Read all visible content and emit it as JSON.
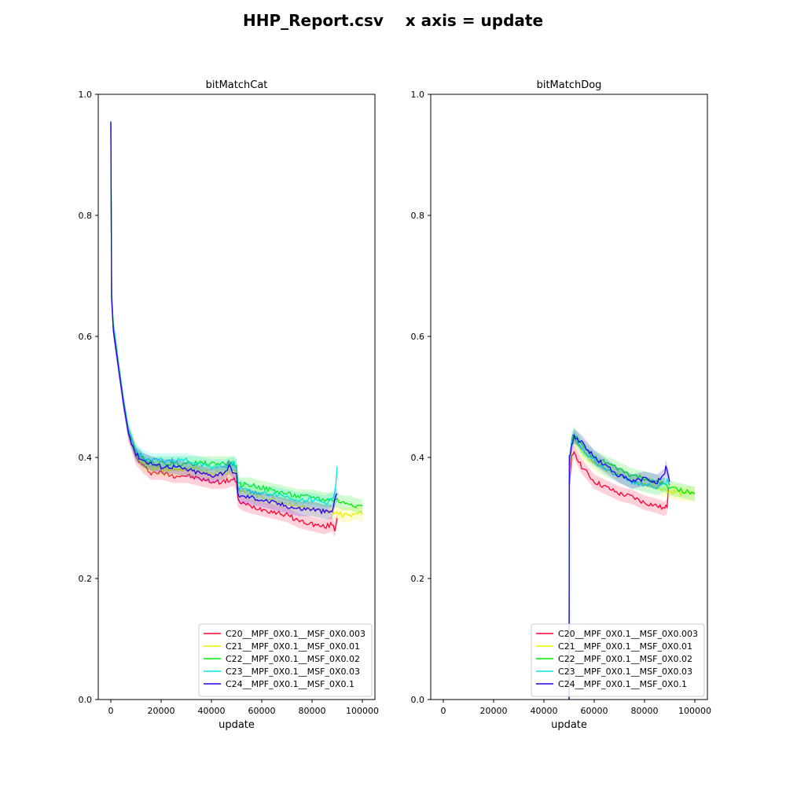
{
  "figure": {
    "title": "HHP_Report.csv    x axis = update"
  },
  "colors": {
    "C20": "#ff0033",
    "C21": "#f0f000",
    "C22": "#00ee00",
    "C23": "#00e5e5",
    "C24": "#2200ee"
  },
  "chart_data": [
    {
      "type": "line",
      "title": "bitMatchCat",
      "xlabel": "update",
      "ylabel": "",
      "xlim": [
        -5000,
        105000
      ],
      "ylim": [
        0.0,
        1.0
      ],
      "xticks": [
        0,
        20000,
        40000,
        60000,
        80000,
        100000
      ],
      "xtick_labels": [
        "0",
        "20000",
        "40000",
        "60000",
        "80000",
        "100000"
      ],
      "yticks": [
        0.0,
        0.2,
        0.4,
        0.6,
        0.8,
        1.0
      ],
      "ytick_labels": [
        "0.0",
        "0.2",
        "0.4",
        "0.6",
        "0.8",
        "1.0"
      ],
      "legend_position": "lower-right",
      "shaded_band": true,
      "series": [
        {
          "name": "C20__MPF_0X0.1__MSF_0X0.003",
          "color_key": "C20",
          "x": [
            0,
            300,
            1000,
            2000,
            3000,
            5000,
            7000,
            10000,
            13000,
            16000,
            20000,
            25000,
            30000,
            35000,
            40000,
            45000,
            49000,
            50000,
            50500,
            52000,
            55000,
            60000,
            65000,
            70000,
            75000,
            80000,
            85000,
            88000,
            89000,
            89500,
            90000
          ],
          "y": [
            0.95,
            0.66,
            0.61,
            0.58,
            0.55,
            0.49,
            0.44,
            0.4,
            0.385,
            0.375,
            0.375,
            0.37,
            0.37,
            0.365,
            0.36,
            0.36,
            0.365,
            0.355,
            0.33,
            0.325,
            0.32,
            0.315,
            0.31,
            0.305,
            0.295,
            0.29,
            0.285,
            0.29,
            0.28,
            0.29,
            0.3
          ]
        },
        {
          "name": "C21__MPF_0X0.1__MSF_0X0.01",
          "color_key": "C21",
          "x": [
            0,
            300,
            1000,
            2000,
            3000,
            5000,
            7000,
            10000,
            13000,
            16000,
            20000,
            25000,
            30000,
            35000,
            40000,
            45000,
            49000,
            50000,
            50500,
            52000,
            55000,
            60000,
            65000,
            70000,
            75000,
            80000,
            85000,
            90000,
            92000,
            95000,
            98000,
            100000
          ],
          "y": [
            0.955,
            0.665,
            0.615,
            0.585,
            0.555,
            0.495,
            0.445,
            0.405,
            0.39,
            0.385,
            0.38,
            0.38,
            0.38,
            0.38,
            0.375,
            0.375,
            0.38,
            0.375,
            0.345,
            0.345,
            0.34,
            0.335,
            0.33,
            0.325,
            0.32,
            0.315,
            0.31,
            0.31,
            0.305,
            0.305,
            0.31,
            0.305
          ]
        },
        {
          "name": "C22__MPF_0X0.1__MSF_0X0.02",
          "color_key": "C22",
          "x": [
            0,
            300,
            1000,
            2000,
            3000,
            5000,
            7000,
            10000,
            13000,
            16000,
            20000,
            25000,
            30000,
            35000,
            40000,
            45000,
            49000,
            50000,
            50500,
            52000,
            55000,
            60000,
            65000,
            70000,
            75000,
            80000,
            85000,
            90000,
            92000,
            95000,
            98000,
            100000
          ],
          "y": [
            0.955,
            0.67,
            0.62,
            0.59,
            0.555,
            0.495,
            0.445,
            0.41,
            0.395,
            0.39,
            0.39,
            0.39,
            0.39,
            0.39,
            0.39,
            0.39,
            0.39,
            0.385,
            0.355,
            0.355,
            0.355,
            0.35,
            0.345,
            0.34,
            0.335,
            0.335,
            0.33,
            0.33,
            0.325,
            0.325,
            0.32,
            0.32
          ]
        },
        {
          "name": "C23__MPF_0X0.1__MSF_0X0.03",
          "color_key": "C23",
          "x": [
            0,
            300,
            1000,
            2000,
            3000,
            5000,
            7000,
            10000,
            13000,
            16000,
            20000,
            25000,
            30000,
            35000,
            40000,
            45000,
            49000,
            50000,
            50500,
            52000,
            55000,
            60000,
            65000,
            70000,
            75000,
            80000,
            85000,
            88000,
            89000,
            89500,
            90000
          ],
          "y": [
            0.955,
            0.665,
            0.615,
            0.585,
            0.555,
            0.495,
            0.445,
            0.41,
            0.4,
            0.395,
            0.395,
            0.395,
            0.395,
            0.39,
            0.385,
            0.385,
            0.39,
            0.385,
            0.35,
            0.35,
            0.345,
            0.34,
            0.34,
            0.335,
            0.33,
            0.33,
            0.325,
            0.33,
            0.34,
            0.36,
            0.385
          ]
        },
        {
          "name": "C24__MPF_0X0.1__MSF_0X0.1",
          "color_key": "C24",
          "x": [
            0,
            300,
            1000,
            2000,
            3000,
            5000,
            7000,
            10000,
            13000,
            16000,
            20000,
            25000,
            30000,
            35000,
            40000,
            45000,
            47000,
            49000,
            50000,
            50500,
            52000,
            55000,
            60000,
            65000,
            70000,
            75000,
            80000,
            85000,
            88000,
            89000,
            90000
          ],
          "y": [
            0.955,
            0.665,
            0.61,
            0.58,
            0.55,
            0.49,
            0.44,
            0.405,
            0.395,
            0.39,
            0.385,
            0.385,
            0.38,
            0.375,
            0.37,
            0.375,
            0.385,
            0.375,
            0.37,
            0.34,
            0.335,
            0.335,
            0.33,
            0.325,
            0.32,
            0.315,
            0.315,
            0.31,
            0.31,
            0.33,
            0.34
          ]
        }
      ]
    },
    {
      "type": "line",
      "title": "bitMatchDog",
      "xlabel": "update",
      "ylabel": "",
      "xlim": [
        -5000,
        105000
      ],
      "ylim": [
        0.0,
        1.0
      ],
      "xticks": [
        0,
        20000,
        40000,
        60000,
        80000,
        100000
      ],
      "xtick_labels": [
        "0",
        "20000",
        "40000",
        "60000",
        "80000",
        "100000"
      ],
      "yticks": [
        0.0,
        0.2,
        0.4,
        0.6,
        0.8,
        1.0
      ],
      "ytick_labels": [
        "0.0",
        "0.2",
        "0.4",
        "0.6",
        "0.8",
        "1.0"
      ],
      "legend_position": "lower-right",
      "shaded_band": true,
      "series": [
        {
          "name": "C20__MPF_0X0.1__MSF_0X0.003",
          "color_key": "C20",
          "x": [
            50000,
            50100,
            50500,
            51000,
            52000,
            55000,
            60000,
            65000,
            70000,
            75000,
            80000,
            85000,
            88000,
            89000,
            89500
          ],
          "y": [
            0.0,
            0.35,
            0.37,
            0.4,
            0.41,
            0.385,
            0.36,
            0.35,
            0.34,
            0.335,
            0.325,
            0.32,
            0.315,
            0.32,
            0.35
          ]
        },
        {
          "name": "C21__MPF_0X0.1__MSF_0X0.01",
          "color_key": "C21",
          "x": [
            50000,
            50100,
            50500,
            51000,
            52000,
            55000,
            60000,
            65000,
            70000,
            75000,
            80000,
            85000,
            90000,
            95000,
            100000
          ],
          "y": [
            0.0,
            0.36,
            0.39,
            0.42,
            0.43,
            0.41,
            0.39,
            0.38,
            0.37,
            0.36,
            0.355,
            0.35,
            0.345,
            0.34,
            0.34
          ]
        },
        {
          "name": "C22__MPF_0X0.1__MSF_0X0.02",
          "color_key": "C22",
          "x": [
            50000,
            50100,
            50500,
            51000,
            52000,
            55000,
            60000,
            65000,
            70000,
            75000,
            80000,
            85000,
            90000,
            95000,
            100000
          ],
          "y": [
            0.0,
            0.36,
            0.4,
            0.43,
            0.44,
            0.42,
            0.4,
            0.39,
            0.38,
            0.37,
            0.365,
            0.36,
            0.35,
            0.345,
            0.34
          ]
        },
        {
          "name": "C23__MPF_0X0.1__MSF_0X0.03",
          "color_key": "C23",
          "x": [
            50000,
            50100,
            50500,
            51000,
            52000,
            55000,
            60000,
            65000,
            70000,
            75000,
            80000,
            85000,
            88000,
            89000,
            90000
          ],
          "y": [
            0.0,
            0.36,
            0.4,
            0.425,
            0.435,
            0.415,
            0.395,
            0.38,
            0.37,
            0.36,
            0.355,
            0.35,
            0.355,
            0.36,
            0.355
          ]
        },
        {
          "name": "C24__MPF_0X0.1__MSF_0X0.1",
          "color_key": "C24",
          "x": [
            50000,
            50100,
            50500,
            51000,
            52000,
            55000,
            60000,
            65000,
            70000,
            75000,
            80000,
            85000,
            88000,
            88500,
            89000,
            90000
          ],
          "y": [
            0.0,
            0.4,
            0.405,
            0.42,
            0.435,
            0.425,
            0.4,
            0.385,
            0.37,
            0.36,
            0.365,
            0.36,
            0.37,
            0.385,
            0.375,
            0.36
          ]
        }
      ]
    }
  ]
}
